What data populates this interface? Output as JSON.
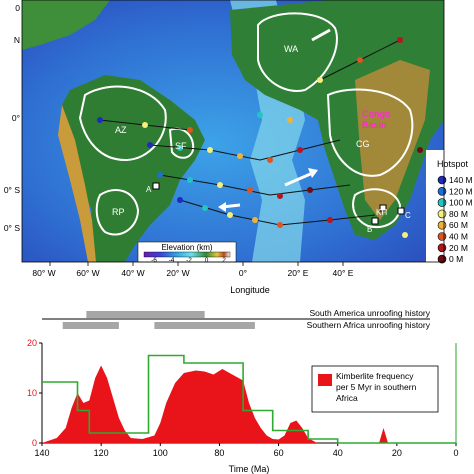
{
  "map": {
    "lat_labels": [
      "0",
      "N",
      "0°",
      "0° S",
      "0° S"
    ],
    "lon_labels": [
      "80° W",
      "60° W",
      "40° W",
      "20° W",
      "0°",
      "20° E",
      "40° E"
    ],
    "xlabel": "Longitude",
    "regions": {
      "wa": "WA",
      "az": "AZ",
      "sf": "SF",
      "rp": "RP",
      "cg": "CG",
      "kh": "KH",
      "a": "A",
      "b": "B",
      "c": "C",
      "congo": "Congo\nBasin"
    },
    "elevation_legend": {
      "title": "Elevation (km)",
      "ticks": [
        "-6",
        "-4",
        "-2",
        "0",
        "2"
      ]
    },
    "hotspot_legend": {
      "title": "Hotspot",
      "items": [
        {
          "label": "140 M",
          "color": "#1f2bbf"
        },
        {
          "label": "120 M",
          "color": "#1d6fd6"
        },
        {
          "label": "100 M",
          "color": "#20c6c6"
        },
        {
          "label": "80 M",
          "color": "#f4f07a"
        },
        {
          "label": "60 M",
          "color": "#f2b23a"
        },
        {
          "label": "40 M",
          "color": "#e0541f"
        },
        {
          "label": "20 M",
          "color": "#b4161b"
        },
        {
          "label": "0 M",
          "color": "#6e0e12"
        }
      ]
    }
  },
  "chart_data": {
    "type": "area",
    "x_axis": {
      "label": "Time (Ma)",
      "range": [
        140,
        0
      ],
      "ticks": [
        140,
        120,
        100,
        80,
        60,
        40,
        20,
        0
      ]
    },
    "y_axis": {
      "range": [
        0,
        20
      ],
      "ticks": [
        0,
        10,
        20
      ]
    },
    "unroofing": {
      "south_america": {
        "label": "South America unroofing history",
        "bars": [
          [
            125,
            85
          ]
        ]
      },
      "southern_africa": {
        "label": "Southern Africa unroofing history",
        "bars": [
          [
            133,
            114
          ],
          [
            102,
            68
          ]
        ]
      }
    },
    "legend": {
      "label": "Kimberlite frequency\nper 5 Myr in southern\nAfrica",
      "color": "#e8141a"
    },
    "kimberlite": {
      "x": [
        140,
        135,
        132,
        130,
        128,
        126,
        124,
        122,
        120,
        118,
        116,
        114,
        112,
        110,
        106,
        102,
        100,
        98,
        95,
        92,
        88,
        85,
        82,
        79,
        76,
        72,
        70,
        68,
        66,
        64,
        62,
        60,
        58,
        56,
        54,
        52,
        50,
        47,
        44,
        40,
        30,
        26,
        24.5,
        23,
        21,
        10,
        0
      ],
      "y": [
        0,
        1,
        3,
        7,
        10,
        8,
        8.5,
        13,
        15.5,
        13,
        9,
        5,
        2.5,
        1,
        0.8,
        1.5,
        4,
        8,
        12,
        14,
        14.5,
        14.3,
        13.7,
        14.8,
        13.8,
        12.5,
        8,
        5,
        3,
        1.5,
        0.8,
        0.7,
        1.5,
        4,
        4.5,
        3,
        1,
        0,
        0,
        0,
        0,
        0,
        3,
        0,
        0,
        0,
        0
      ]
    },
    "green_step": {
      "x": [
        140,
        128,
        128,
        124,
        124,
        104,
        104,
        92,
        92,
        72,
        72,
        62,
        62,
        50,
        50,
        40,
        40,
        0
      ],
      "y": [
        12.2,
        12.2,
        6.5,
        6.5,
        2,
        2,
        17.5,
        17.5,
        16,
        16,
        6.5,
        6.5,
        2.5,
        2.5,
        0.8,
        0.8,
        0,
        0
      ]
    }
  }
}
